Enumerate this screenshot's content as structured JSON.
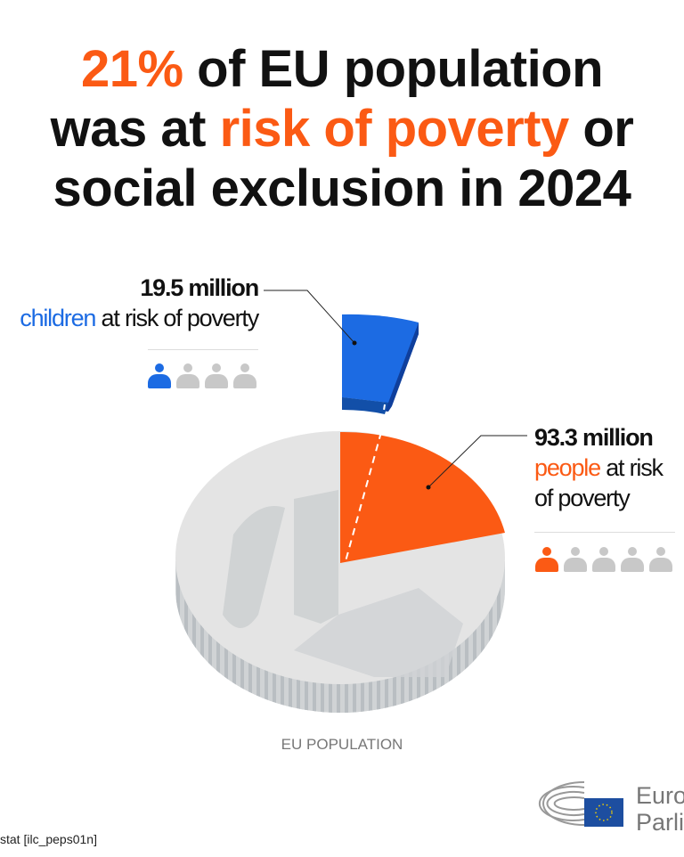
{
  "title": {
    "pct": "21%",
    "line1_rest": " of EU population",
    "line2_pre": "was at ",
    "line2_hl": "risk of poverty",
    "line2_post": " or",
    "line3": "social exclusion in 2024"
  },
  "children": {
    "value": "19.5 million",
    "word": "children",
    "rest": " at risk of poverty",
    "icons_highlighted": 1,
    "icons_total": 4
  },
  "people": {
    "value": "93.3 million",
    "word": "people",
    "rest1": " at risk",
    "rest2": "of poverty",
    "icons_highlighted": 1,
    "icons_total": 5
  },
  "axis_label": "EU POPULATION",
  "source": "stat [ilc_peps01n]",
  "logo": {
    "line1": "Europ",
    "line2": "Parlia"
  },
  "colors": {
    "orange": "#fb5a14",
    "blue": "#1c6be3",
    "grey": "#c8c8c8"
  },
  "chart_data": {
    "type": "pie",
    "title": "21% of EU population was at risk of poverty or social exclusion in 2024",
    "categories": [
      "People at risk of poverty",
      "Rest of EU population"
    ],
    "values": [
      21,
      79
    ],
    "units": "% of EU population",
    "annotations": [
      {
        "label": "93.3 million people at risk of poverty"
      },
      {
        "label": "19.5 million children at risk of poverty",
        "subset_of": "People at risk of poverty"
      }
    ],
    "xlabel": "EU POPULATION"
  }
}
